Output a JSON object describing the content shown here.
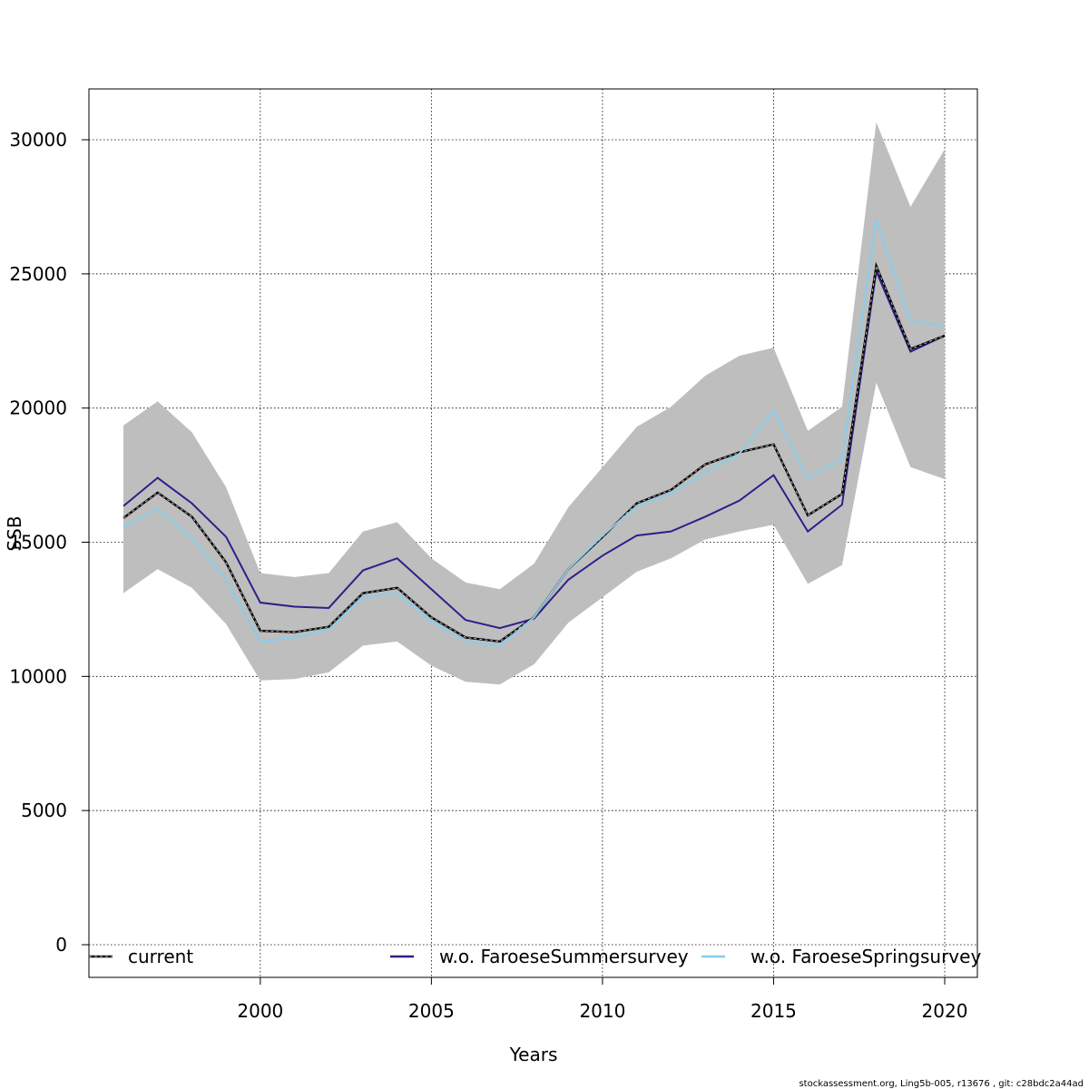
{
  "chart_data": {
    "type": "line",
    "xlabel": "Years",
    "ylabel": "SSB",
    "xlim": [
      1996,
      2020
    ],
    "ylim": [
      0,
      31800
    ],
    "x_ticks": [
      2000,
      2005,
      2010,
      2015,
      2020
    ],
    "y_ticks": [
      0,
      5000,
      10000,
      15000,
      20000,
      25000,
      30000
    ],
    "grid": true,
    "legend_position": "bottom",
    "x": [
      1996,
      1997,
      1998,
      1999,
      2000,
      2001,
      2002,
      2003,
      2004,
      2005,
      2006,
      2007,
      2008,
      2009,
      2010,
      2011,
      2012,
      2013,
      2014,
      2015,
      2016,
      2017,
      2018,
      2019,
      2020
    ],
    "band": {
      "color": "#bebebe",
      "upper": [
        19350,
        20250,
        19100,
        17050,
        13850,
        13700,
        13850,
        15400,
        15750,
        14400,
        13500,
        13250,
        14200,
        16300,
        17800,
        19300,
        20050,
        21200,
        21950,
        22250,
        19150,
        20050,
        30650,
        27500,
        29650
      ],
      "lower": [
        13100,
        14000,
        13300,
        11950,
        9850,
        9900,
        10150,
        11150,
        11300,
        10400,
        9800,
        9700,
        10450,
        12000,
        12950,
        13900,
        14400,
        15100,
        15400,
        15650,
        13450,
        14150,
        20950,
        17800,
        17350
      ]
    },
    "series": [
      {
        "name": "current",
        "color": "#000000",
        "values": [
          15900,
          16850,
          15950,
          14250,
          11700,
          11650,
          11850,
          13100,
          13300,
          12200,
          11450,
          11300,
          12200,
          14000,
          15200,
          16450,
          16950,
          17900,
          18350,
          18650,
          16000,
          16800,
          25300,
          22200,
          22700
        ]
      },
      {
        "name": "w.o. FaroeseSummersurvey",
        "color": "#2e1f8a",
        "values": [
          16350,
          17400,
          16450,
          15200,
          12750,
          12600,
          12550,
          13950,
          14400,
          13250,
          12100,
          11800,
          12150,
          13600,
          14500,
          15250,
          15400,
          15950,
          16550,
          17500,
          15400,
          16400,
          25100,
          22100,
          22700
        ]
      },
      {
        "name": "w.o. FaroeseSpringsurvey",
        "color": "#87ceeb",
        "values": [
          15550,
          16250,
          15150,
          13600,
          11300,
          11450,
          11750,
          12950,
          13100,
          12050,
          11300,
          11150,
          12200,
          14000,
          15250,
          16350,
          16800,
          17600,
          18300,
          19900,
          17400,
          18100,
          27050,
          23250,
          23050
        ]
      }
    ],
    "footer": "stockassessment.org, Ling5b-005, r13676 , git: c28bdc2a44ad"
  }
}
